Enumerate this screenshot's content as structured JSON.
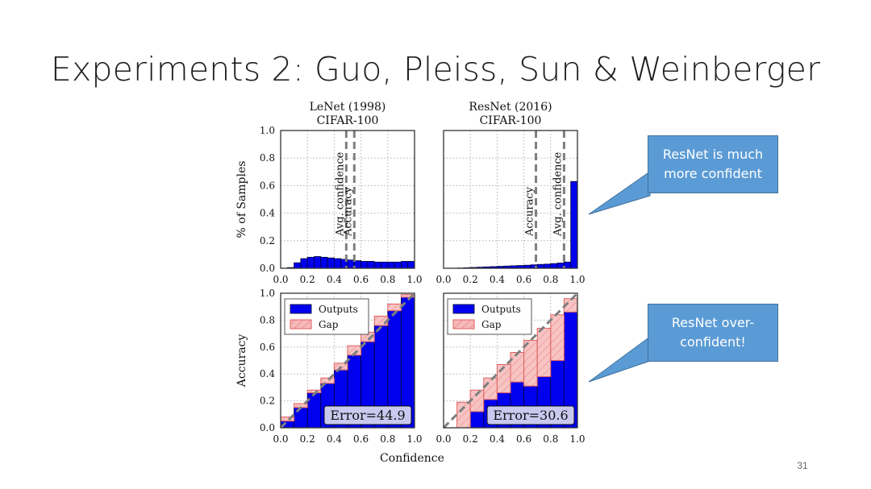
{
  "slide": {
    "title": "Experiments 2: Guo, Pleiss, Sun & Weinberger",
    "page_number": "31"
  },
  "callouts": [
    {
      "text_line1": "ResNet is much",
      "text_line2": "more confident"
    },
    {
      "text_line1": "ResNet over-",
      "text_line2": "confident!"
    }
  ],
  "colors": {
    "outputs": "#0000ee",
    "gap": "#f7b2b2",
    "gap_edge": "#e06060",
    "dashed_line": "#7f7f7f",
    "callout_fill": "#5b9bd5"
  },
  "chart_data": [
    {
      "type": "bar",
      "title": "LeNet (1998)",
      "subtitle": "CIFAR-100",
      "ylabel": "% of Samples",
      "xlim": [
        0.0,
        1.0
      ],
      "ylim": [
        0.0,
        1.0
      ],
      "xticks": [
        "0.0",
        "0.2",
        "0.4",
        "0.6",
        "0.8",
        "1.0"
      ],
      "yticks": [
        "0.0",
        "0.2",
        "0.4",
        "0.6",
        "0.8",
        "1.0"
      ],
      "grid": true,
      "bins": [
        0.0,
        0.05,
        0.1,
        0.15,
        0.2,
        0.25,
        0.3,
        0.35,
        0.4,
        0.45,
        0.5,
        0.55,
        0.6,
        0.65,
        0.7,
        0.75,
        0.8,
        0.85,
        0.9,
        0.95
      ],
      "bin_width": 0.05,
      "values": [
        0.0,
        0.005,
        0.04,
        0.07,
        0.08,
        0.085,
        0.08,
        0.075,
        0.07,
        0.065,
        0.06,
        0.055,
        0.05,
        0.05,
        0.045,
        0.045,
        0.045,
        0.045,
        0.05,
        0.05
      ],
      "vlines": [
        {
          "label": "Avg. confidence",
          "x": 0.49
        },
        {
          "label": "Accuracy",
          "x": 0.55
        }
      ]
    },
    {
      "type": "bar",
      "title": "ResNet (2016)",
      "subtitle": "CIFAR-100",
      "xlim": [
        0.0,
        1.0
      ],
      "ylim": [
        0.0,
        1.0
      ],
      "xticks": [
        "0.0",
        "0.2",
        "0.4",
        "0.6",
        "0.8",
        "1.0"
      ],
      "grid": true,
      "bins": [
        0.0,
        0.05,
        0.1,
        0.15,
        0.2,
        0.25,
        0.3,
        0.35,
        0.4,
        0.45,
        0.5,
        0.55,
        0.6,
        0.65,
        0.7,
        0.75,
        0.8,
        0.85,
        0.9,
        0.95
      ],
      "bin_width": 0.05,
      "values": [
        0.0,
        0.0,
        0.002,
        0.004,
        0.006,
        0.008,
        0.01,
        0.012,
        0.014,
        0.016,
        0.018,
        0.02,
        0.022,
        0.025,
        0.028,
        0.03,
        0.034,
        0.038,
        0.045,
        0.63
      ],
      "vlines": [
        {
          "label": "Accuracy",
          "x": 0.69
        },
        {
          "label": "Avg. confidence",
          "x": 0.9
        }
      ]
    },
    {
      "type": "bar",
      "ylabel": "Accuracy",
      "xlim": [
        0.0,
        1.0
      ],
      "ylim": [
        0.0,
        1.0
      ],
      "xticks": [
        "0.0",
        "0.2",
        "0.4",
        "0.6",
        "0.8",
        "1.0"
      ],
      "yticks": [
        "0.0",
        "0.2",
        "0.4",
        "0.6",
        "0.8",
        "1.0"
      ],
      "grid": true,
      "legend": [
        "Outputs",
        "Gap"
      ],
      "legend_position": "upper-left",
      "annotation": "Error=44.9",
      "bins": [
        0.0,
        0.1,
        0.2,
        0.3,
        0.4,
        0.5,
        0.6,
        0.7,
        0.8,
        0.9
      ],
      "bin_width": 0.1,
      "outputs": [
        0.05,
        0.15,
        0.26,
        0.33,
        0.43,
        0.54,
        0.64,
        0.76,
        0.87,
        0.97
      ],
      "gap_top": [
        0.08,
        0.18,
        0.28,
        0.37,
        0.48,
        0.61,
        0.71,
        0.83,
        0.92,
        0.99
      ]
    },
    {
      "type": "bar",
      "xlim": [
        0.0,
        1.0
      ],
      "ylim": [
        0.0,
        1.0
      ],
      "xticks": [
        "0.0",
        "0.2",
        "0.4",
        "0.6",
        "0.8",
        "1.0"
      ],
      "grid": true,
      "legend": [
        "Outputs",
        "Gap"
      ],
      "legend_position": "upper-left",
      "annotation": "Error=30.6",
      "bins": [
        0.0,
        0.1,
        0.2,
        0.3,
        0.4,
        0.5,
        0.6,
        0.7,
        0.8,
        0.9
      ],
      "bin_width": 0.1,
      "outputs": [
        0.0,
        0.0,
        0.12,
        0.21,
        0.26,
        0.34,
        0.31,
        0.38,
        0.5,
        0.86
      ],
      "gap_top": [
        0.0,
        0.19,
        0.28,
        0.37,
        0.47,
        0.56,
        0.65,
        0.74,
        0.84,
        0.96
      ]
    }
  ],
  "shared_xlabel": "Confidence"
}
